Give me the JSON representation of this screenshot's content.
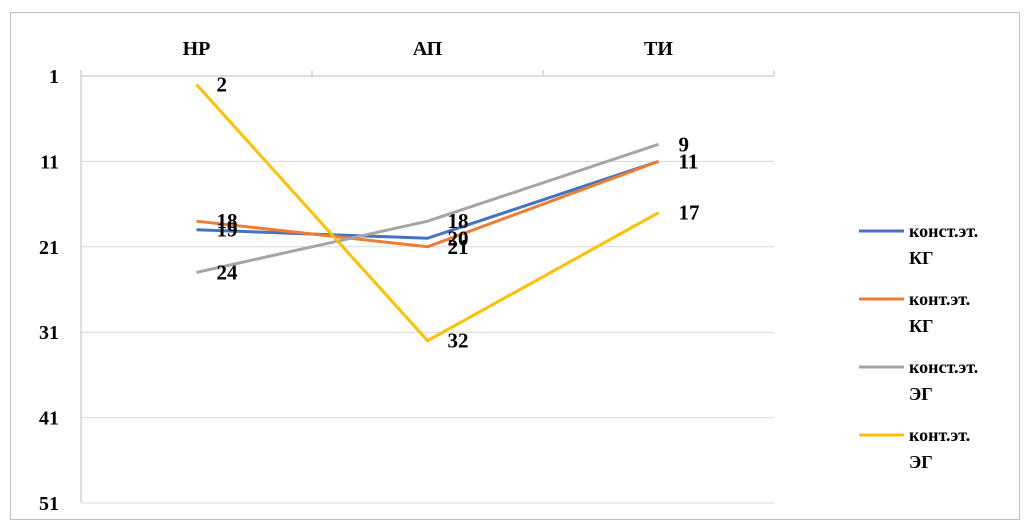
{
  "chart_data": {
    "type": "line",
    "categories": [
      "НР",
      "АП",
      "ТИ"
    ],
    "y_axis": {
      "reversed": true,
      "ylim": [
        1,
        51
      ],
      "ticks": [
        "1",
        "11",
        "21",
        "31",
        "41",
        "51"
      ],
      "tick_values": [
        1,
        11,
        21,
        31,
        41,
        51
      ],
      "grid": true
    },
    "x_axis_position": "top",
    "legend": "right",
    "series": [
      {
        "name": "конст.эт. КГ",
        "name_lines": [
          "конст.эт.",
          "КГ"
        ],
        "color": "#4472C4",
        "values": [
          19,
          20,
          11
        ],
        "labels": [
          "19",
          "20",
          "11"
        ]
      },
      {
        "name": "конт.эт. КГ",
        "name_lines": [
          "конт.эт.",
          "КГ"
        ],
        "color": "#ED7D31",
        "values": [
          18,
          21,
          11
        ],
        "labels": [
          "18",
          "21",
          "11"
        ]
      },
      {
        "name": "конст.эт. ЭГ",
        "name_lines": [
          "конст.эт.",
          "ЭГ"
        ],
        "color": "#A5A5A5",
        "values": [
          24,
          18,
          9
        ],
        "labels": [
          "24",
          "18",
          "9"
        ]
      },
      {
        "name": "конт.эт. ЭГ",
        "name_lines": [
          "конт.эт.",
          "ЭГ"
        ],
        "color": "#FFC000",
        "values": [
          2,
          32,
          17
        ],
        "labels": [
          "2",
          "32",
          "17"
        ]
      }
    ]
  }
}
